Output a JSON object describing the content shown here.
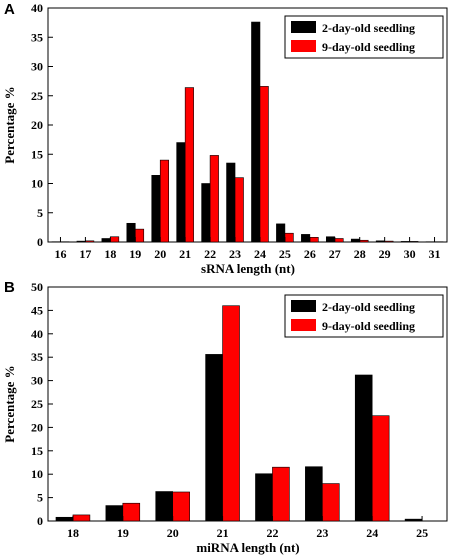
{
  "chart_data": [
    {
      "panel": "A",
      "type": "bar",
      "categories": [
        "16",
        "17",
        "18",
        "19",
        "20",
        "21",
        "22",
        "23",
        "24",
        "25",
        "26",
        "27",
        "28",
        "29",
        "30",
        "31"
      ],
      "series": [
        {
          "name": "2-day-old seedling",
          "color": "#000000",
          "values": [
            0.05,
            0.15,
            0.6,
            3.2,
            11.4,
            17.0,
            10.0,
            13.5,
            37.6,
            3.1,
            1.3,
            0.9,
            0.5,
            0.2,
            0.1,
            0.05
          ]
        },
        {
          "name": "9-day-old seedling",
          "color": "#ff0000",
          "values": [
            0.05,
            0.2,
            0.9,
            2.2,
            14.0,
            26.4,
            14.8,
            11.0,
            26.6,
            1.5,
            0.8,
            0.6,
            0.3,
            0.15,
            0.1,
            0.05
          ]
        }
      ],
      "xlabel": "sRNA length (nt)",
      "ylabel": "Percentage %",
      "ylim": [
        0,
        40
      ],
      "yticks": [
        0,
        5,
        10,
        15,
        20,
        25,
        30,
        35,
        40
      ],
      "legend_position": "top-right",
      "grid": false
    },
    {
      "panel": "B",
      "type": "bar",
      "categories": [
        "18",
        "19",
        "20",
        "21",
        "22",
        "23",
        "24",
        "25"
      ],
      "series": [
        {
          "name": "2-day-old seedling",
          "color": "#000000",
          "values": [
            0.8,
            3.3,
            6.3,
            35.6,
            10.1,
            11.6,
            31.2,
            0.4
          ]
        },
        {
          "name": "9-day-old seedling",
          "color": "#ff0000",
          "values": [
            1.3,
            3.8,
            6.2,
            46.0,
            11.5,
            8.0,
            22.5,
            0.0
          ]
        }
      ],
      "xlabel": "miRNA length (nt)",
      "ylabel": "Percentage %",
      "ylim": [
        0,
        50
      ],
      "yticks": [
        0,
        5,
        10,
        15,
        20,
        25,
        30,
        35,
        40,
        45,
        50
      ],
      "legend_position": "top-right",
      "grid": false
    }
  ]
}
